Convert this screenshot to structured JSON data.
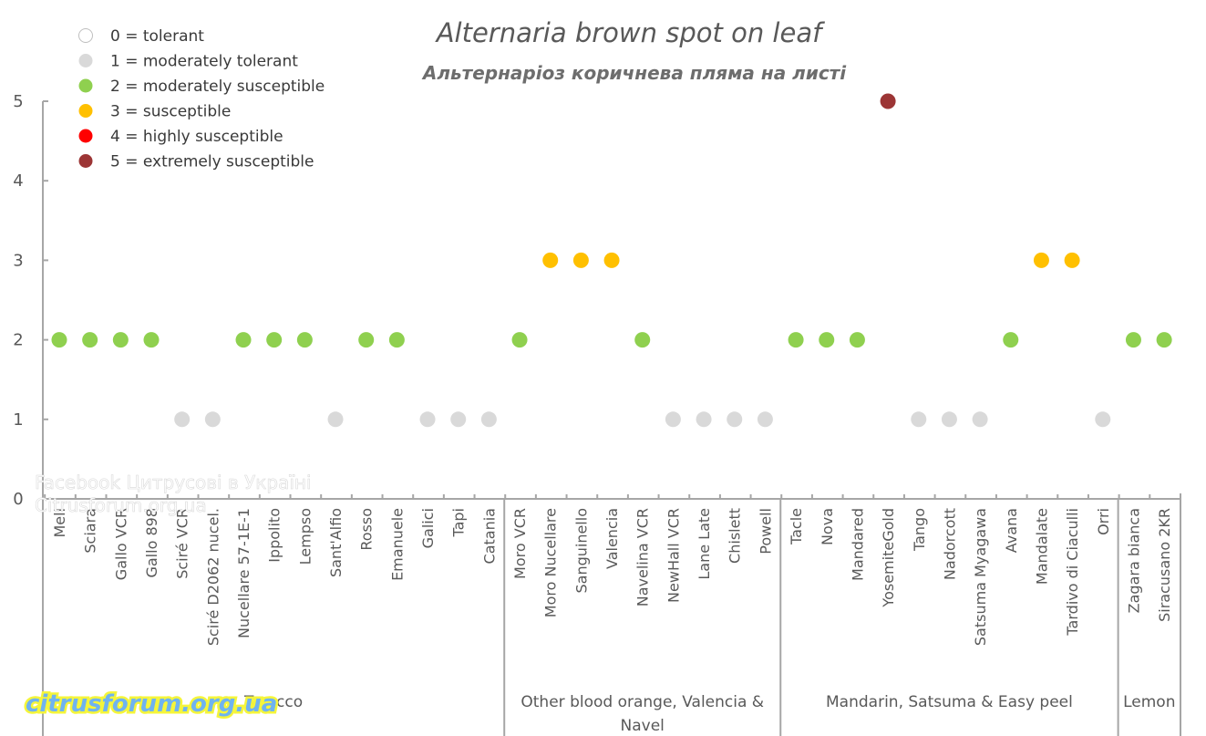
{
  "chart_data": {
    "type": "scatter",
    "title": "Alternaria brown spot on leaf",
    "subtitle": "Альтернаріоз коричнева пляма на листі",
    "xlabel": "",
    "ylabel": "",
    "ylim": [
      0,
      5
    ],
    "yticks": [
      "0",
      "1",
      "2",
      "3",
      "4",
      "5"
    ],
    "grid": false,
    "legend_position": "top-left",
    "legend": [
      {
        "score": 0,
        "label": "0 = tolerant",
        "color": "#ffffff"
      },
      {
        "score": 1,
        "label": "1 = moderately tolerant",
        "color": "#d9d9d9"
      },
      {
        "score": 2,
        "label": "2 = moderately susceptible",
        "color": "#8fd04f"
      },
      {
        "score": 3,
        "label": "3 = susceptible",
        "color": "#ffc000"
      },
      {
        "score": 4,
        "label": "4 = highly susceptible",
        "color": "#ff0000"
      },
      {
        "score": 5,
        "label": "5 = extremely susceptible",
        "color": "#9c3535"
      }
    ],
    "groups": [
      {
        "name": "Tarocco",
        "categories": [
          "Meli",
          "Sciara",
          "Gallo VCR",
          "Gallo 898",
          "Sciré VCR",
          "Sciré D2062 nucel.",
          "Nucellare 57-1E-1",
          "Ippolito",
          "Lempso",
          "Sant'Alfio",
          "Rosso",
          "Emanuele",
          "Galici",
          "Tapi",
          "Catania"
        ],
        "values": [
          2,
          2,
          2,
          2,
          1,
          1,
          2,
          2,
          2,
          1,
          2,
          2,
          1,
          1,
          1
        ]
      },
      {
        "name": "Other blood orange, Valencia & Navel",
        "categories": [
          "Moro VCR",
          "Moro Nucellare",
          "Sanguinello",
          "Valencia",
          "Navelina VCR",
          "NewHall VCR",
          "Lane Late",
          "Chislett",
          "Powell"
        ],
        "values": [
          2,
          3,
          3,
          3,
          2,
          1,
          1,
          1,
          1
        ]
      },
      {
        "name": "Mandarin, Satsuma & Easy peel",
        "categories": [
          "Tacle",
          "Nova",
          "Mandared",
          "YosemiteGold",
          "Tango",
          "Nadorcott",
          "Satsuma Myagawa",
          "Avana",
          "Mandalate",
          "Tardivo di Ciaculli",
          "Orri"
        ],
        "values": [
          2,
          2,
          2,
          5,
          1,
          1,
          1,
          2,
          3,
          3,
          1
        ]
      },
      {
        "name": "Lemon",
        "categories": [
          "Zagara bianca",
          "Siracusano 2KR"
        ],
        "values": [
          2,
          2
        ]
      }
    ]
  },
  "watermarks": {
    "facebook_line": "Facebook Цитрусові в Україні",
    "site_line": "Citrusforum.org.ua",
    "logo_text": "citrusforum.org.ua"
  }
}
